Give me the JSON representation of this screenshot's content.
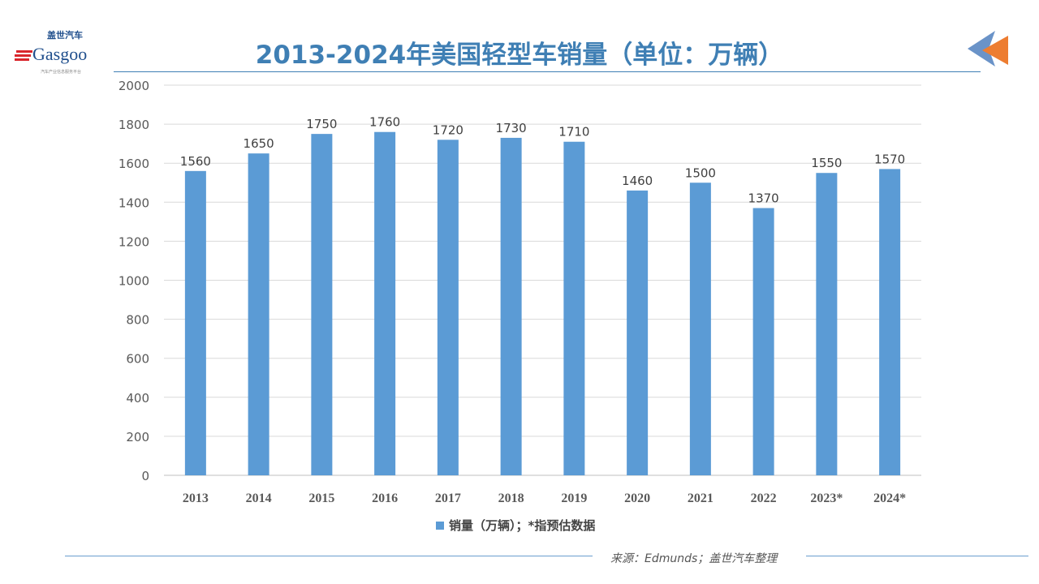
{
  "title": "2013-2024年美国轻型车销量（单位：万辆）",
  "logo": {
    "brand_cn": "盖世汽车",
    "brand_en": "Gasgoo",
    "tagline": "汽车产业信息服务平台"
  },
  "source": "来源：Edmunds；盖世汽车整理",
  "colors": {
    "bar": "#5b9bd5",
    "title": "#3f7fb4",
    "arrow_blue": "#6a93c8",
    "arrow_orange": "#ed7d31"
  },
  "chart_data": {
    "type": "bar",
    "title": "2013-2024年美国轻型车销量（单位：万辆）",
    "categories": [
      "2013",
      "2014",
      "2015",
      "2016",
      "2017",
      "2018",
      "2019",
      "2020",
      "2021",
      "2022",
      "2023*",
      "2024*"
    ],
    "series": [
      {
        "name": "销量（万辆）；*指预估数据",
        "values": [
          1560,
          1650,
          1750,
          1760,
          1720,
          1730,
          1710,
          1460,
          1500,
          1370,
          1550,
          1570
        ]
      }
    ],
    "ylim": [
      0,
      2000
    ],
    "yticks": [
      0,
      200,
      400,
      600,
      800,
      1000,
      1200,
      1400,
      1600,
      1800,
      2000
    ],
    "grid": true,
    "legend": "bottom",
    "data_labels": true
  }
}
